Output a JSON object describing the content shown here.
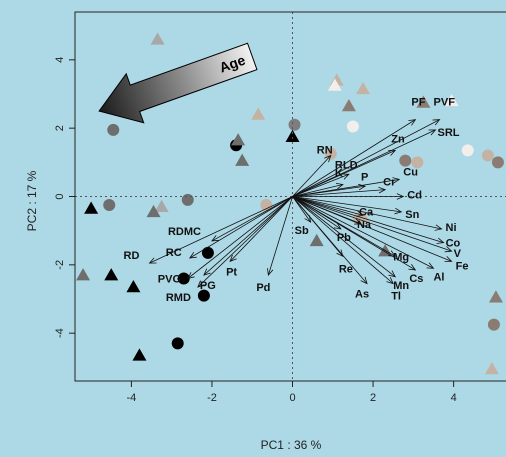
{
  "chart_data": {
    "type": "scatter",
    "subtype": "pca-biplot",
    "xlabel": "PC1 : 36 %",
    "ylabel": "PC2 : 17 %",
    "xlim": [
      -5.4,
      5.3
    ],
    "ylim": [
      -5.4,
      5.4
    ],
    "x_ticks": [
      -4,
      -2,
      0,
      2,
      4
    ],
    "y_ticks": [
      -4,
      -2,
      0,
      2,
      4
    ],
    "reference_lines": {
      "x": 0,
      "y": 0,
      "style": "dotted"
    },
    "grid": false,
    "arrow_annotation": {
      "label": "Age",
      "from": [
        -1.0,
        4.1
      ],
      "to": [
        -4.8,
        2.5
      ]
    },
    "loadings": [
      {
        "name": "PF",
        "x": 3.05,
        "y": 2.25
      },
      {
        "name": "PVF",
        "x": 3.65,
        "y": 2.25
      },
      {
        "name": "SRL",
        "x": 3.55,
        "y": 1.95
      },
      {
        "name": "RN",
        "x": 0.95,
        "y": 1.2
      },
      {
        "name": "Zn",
        "x": 2.55,
        "y": 1.35
      },
      {
        "name": "RLD",
        "x": 1.4,
        "y": 0.65
      },
      {
        "name": "K",
        "x": 1.25,
        "y": 0.35
      },
      {
        "name": "Cu",
        "x": 2.65,
        "y": 0.5
      },
      {
        "name": "P",
        "x": 1.8,
        "y": 0.3
      },
      {
        "name": "Cr",
        "x": 2.3,
        "y": 0.2
      },
      {
        "name": "Cd",
        "x": 2.75,
        "y": 0.0
      },
      {
        "name": "Ca",
        "x": 1.75,
        "y": -0.55
      },
      {
        "name": "Sn",
        "x": 2.7,
        "y": -0.45
      },
      {
        "name": "Na",
        "x": 1.7,
        "y": -0.8
      },
      {
        "name": "Pb",
        "x": 1.2,
        "y": -0.95
      },
      {
        "name": "Sb",
        "x": 0.45,
        "y": -0.75
      },
      {
        "name": "Ni",
        "x": 3.7,
        "y": -0.95
      },
      {
        "name": "Co",
        "x": 3.75,
        "y": -1.35
      },
      {
        "name": "V",
        "x": 3.95,
        "y": -1.6
      },
      {
        "name": "Mg",
        "x": 2.55,
        "y": -1.75
      },
      {
        "name": "Fe",
        "x": 3.95,
        "y": -1.9
      },
      {
        "name": "Al",
        "x": 3.5,
        "y": -2.1
      },
      {
        "name": "Cs",
        "x": 3.05,
        "y": -2.15
      },
      {
        "name": "Mn",
        "x": 2.55,
        "y": -2.35
      },
      {
        "name": "Re",
        "x": 1.25,
        "y": -1.75
      },
      {
        "name": "As",
        "x": 1.85,
        "y": -2.55
      },
      {
        "name": "Tl",
        "x": 2.5,
        "y": -2.55
      },
      {
        "name": "RDMC",
        "x": -2.0,
        "y": -1.3
      },
      {
        "name": "RC",
        "x": -2.55,
        "y": -1.8
      },
      {
        "name": "RD",
        "x": -3.55,
        "y": -1.95
      },
      {
        "name": "PVG",
        "x": -2.6,
        "y": -2.4
      },
      {
        "name": "RMD",
        "x": -2.35,
        "y": -2.65
      },
      {
        "name": "PG",
        "x": -2.2,
        "y": -2.3
      },
      {
        "name": "Pt",
        "x": -1.55,
        "y": -1.9
      },
      {
        "name": "Pd",
        "x": -0.6,
        "y": -2.3
      }
    ],
    "points": [
      {
        "x": -4.45,
        "y": 1.95,
        "shape": "circle",
        "color": "#6e6e6e"
      },
      {
        "x": -4.55,
        "y": -0.25,
        "shape": "circle",
        "color": "#6e6e6e"
      },
      {
        "x": -2.6,
        "y": -0.1,
        "shape": "circle",
        "color": "#6e6e6e"
      },
      {
        "x": 0.05,
        "y": 2.1,
        "shape": "circle",
        "color": "#7d7d7d"
      },
      {
        "x": -1.4,
        "y": 1.5,
        "shape": "circle",
        "color": "#000000"
      },
      {
        "x": -2.1,
        "y": -1.65,
        "shape": "circle",
        "color": "#000000"
      },
      {
        "x": -2.7,
        "y": -2.4,
        "shape": "circle",
        "color": "#000000"
      },
      {
        "x": -2.2,
        "y": -2.9,
        "shape": "circle",
        "color": "#000000"
      },
      {
        "x": -2.85,
        "y": -4.3,
        "shape": "circle",
        "color": "#000000"
      },
      {
        "x": -0.65,
        "y": -0.25,
        "shape": "circle",
        "color": "#c4b3a4"
      },
      {
        "x": 0.95,
        "y": 1.25,
        "shape": "circle",
        "color": "#c4b3a4"
      },
      {
        "x": 1.5,
        "y": 2.05,
        "shape": "circle",
        "color": "#f2eeeb"
      },
      {
        "x": 2.8,
        "y": 1.05,
        "shape": "circle",
        "color": "#8a7c72"
      },
      {
        "x": 3.1,
        "y": 1.0,
        "shape": "circle",
        "color": "#c4b3a4"
      },
      {
        "x": 4.35,
        "y": 1.35,
        "shape": "circle",
        "color": "#f2eeeb"
      },
      {
        "x": 4.85,
        "y": 1.2,
        "shape": "circle",
        "color": "#c4b3a4"
      },
      {
        "x": 5.1,
        "y": 1.0,
        "shape": "circle",
        "color": "#8a7c72"
      },
      {
        "x": 1.65,
        "y": -0.65,
        "shape": "circle",
        "color": "#c4b3a4"
      },
      {
        "x": 5.0,
        "y": -3.75,
        "shape": "circle",
        "color": "#8a7c72"
      },
      {
        "x": -3.35,
        "y": 4.6,
        "shape": "triangle",
        "color": "#a8a8a8"
      },
      {
        "x": -0.85,
        "y": 2.4,
        "shape": "triangle",
        "color": "#c4b3a4"
      },
      {
        "x": 1.1,
        "y": 3.4,
        "shape": "triangle",
        "color": "#c4b3a4"
      },
      {
        "x": 1.05,
        "y": 3.25,
        "shape": "triangle",
        "color": "#f2eeeb"
      },
      {
        "x": 1.75,
        "y": 3.15,
        "shape": "triangle",
        "color": "#c4b3a4"
      },
      {
        "x": 1.4,
        "y": 2.65,
        "shape": "triangle",
        "color": "#8a7c72"
      },
      {
        "x": 3.25,
        "y": 2.75,
        "shape": "triangle",
        "color": "#8a7c72"
      },
      {
        "x": 3.95,
        "y": 2.8,
        "shape": "triangle",
        "color": "#f2eeeb"
      },
      {
        "x": -1.35,
        "y": 1.65,
        "shape": "triangle",
        "color": "#6e6e6e"
      },
      {
        "x": -1.25,
        "y": 1.05,
        "shape": "triangle",
        "color": "#6e6e6e"
      },
      {
        "x": 0.0,
        "y": 1.75,
        "shape": "triangle",
        "color": "#000000"
      },
      {
        "x": -5.0,
        "y": -0.35,
        "shape": "triangle",
        "color": "#000000"
      },
      {
        "x": -3.25,
        "y": -0.3,
        "shape": "triangle",
        "color": "#a8a8a8"
      },
      {
        "x": -3.45,
        "y": -0.45,
        "shape": "triangle",
        "color": "#6e6e6e"
      },
      {
        "x": -5.2,
        "y": -2.3,
        "shape": "triangle",
        "color": "#6e6e6e"
      },
      {
        "x": -4.5,
        "y": -2.3,
        "shape": "triangle",
        "color": "#000000"
      },
      {
        "x": -3.95,
        "y": -2.65,
        "shape": "triangle",
        "color": "#000000"
      },
      {
        "x": -3.8,
        "y": -4.65,
        "shape": "triangle",
        "color": "#000000"
      },
      {
        "x": 0.6,
        "y": -1.3,
        "shape": "triangle",
        "color": "#6e6e6e"
      },
      {
        "x": 2.3,
        "y": -1.6,
        "shape": "triangle",
        "color": "#6e6e6e"
      },
      {
        "x": 1.75,
        "y": -0.6,
        "shape": "triangle",
        "color": "#c4b3a4"
      },
      {
        "x": 5.05,
        "y": -2.95,
        "shape": "triangle",
        "color": "#8a7c72"
      },
      {
        "x": 4.95,
        "y": -5.05,
        "shape": "triangle",
        "color": "#c4b3a4"
      }
    ]
  }
}
